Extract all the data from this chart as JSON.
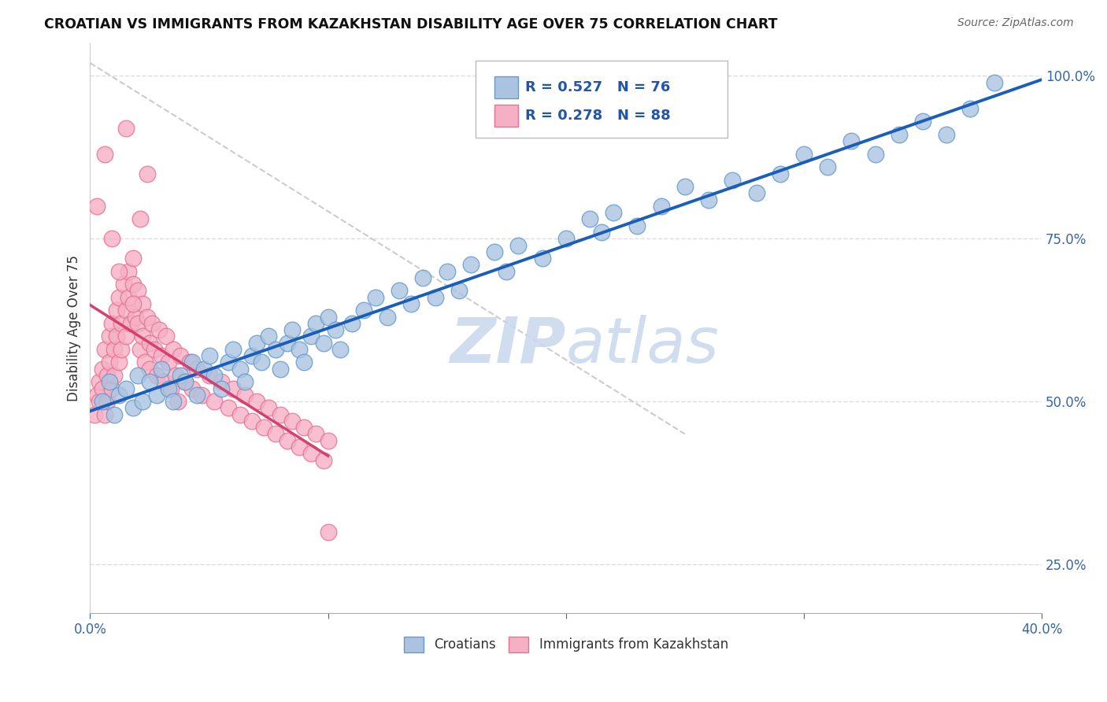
{
  "title": "CROATIAN VS IMMIGRANTS FROM KAZAKHSTAN DISABILITY AGE OVER 75 CORRELATION CHART",
  "source": "Source: ZipAtlas.com",
  "ylabel": "Disability Age Over 75",
  "xlim": [
    0.0,
    0.4
  ],
  "ylim": [
    0.175,
    1.05
  ],
  "xticks": [
    0.0,
    0.1,
    0.2,
    0.3,
    0.4
  ],
  "xtick_labels": [
    "0.0%",
    "",
    "",
    "",
    "40.0%"
  ],
  "yticks": [
    0.25,
    0.5,
    0.75,
    1.0
  ],
  "ytick_labels": [
    "25.0%",
    "50.0%",
    "75.0%",
    "100.0%"
  ],
  "blue_color": "#aac4e0",
  "blue_edge": "#6699cc",
  "pink_color": "#f5b0c5",
  "pink_edge": "#e87090",
  "line_blue": "#1a5eb8",
  "line_pink": "#d44070",
  "grid_color": "#dddddd",
  "watermark_color": "#c8d8ec",
  "legend_label1": "Croatians",
  "legend_label2": "Immigrants from Kazakhstan",
  "blue_scatter_x": [
    0.005,
    0.008,
    0.01,
    0.012,
    0.015,
    0.018,
    0.02,
    0.022,
    0.025,
    0.028,
    0.03,
    0.033,
    0.035,
    0.038,
    0.04,
    0.043,
    0.045,
    0.048,
    0.05,
    0.052,
    0.055,
    0.058,
    0.06,
    0.063,
    0.065,
    0.068,
    0.07,
    0.072,
    0.075,
    0.078,
    0.08,
    0.083,
    0.085,
    0.088,
    0.09,
    0.093,
    0.095,
    0.098,
    0.1,
    0.103,
    0.105,
    0.11,
    0.115,
    0.12,
    0.125,
    0.13,
    0.135,
    0.14,
    0.145,
    0.15,
    0.155,
    0.16,
    0.17,
    0.175,
    0.18,
    0.19,
    0.2,
    0.21,
    0.215,
    0.22,
    0.23,
    0.24,
    0.25,
    0.26,
    0.27,
    0.28,
    0.29,
    0.3,
    0.31,
    0.32,
    0.33,
    0.34,
    0.35,
    0.36,
    0.37,
    0.38
  ],
  "blue_scatter_y": [
    0.5,
    0.53,
    0.48,
    0.51,
    0.52,
    0.49,
    0.54,
    0.5,
    0.53,
    0.51,
    0.55,
    0.52,
    0.5,
    0.54,
    0.53,
    0.56,
    0.51,
    0.55,
    0.57,
    0.54,
    0.52,
    0.56,
    0.58,
    0.55,
    0.53,
    0.57,
    0.59,
    0.56,
    0.6,
    0.58,
    0.55,
    0.59,
    0.61,
    0.58,
    0.56,
    0.6,
    0.62,
    0.59,
    0.63,
    0.61,
    0.58,
    0.62,
    0.64,
    0.66,
    0.63,
    0.67,
    0.65,
    0.69,
    0.66,
    0.7,
    0.67,
    0.71,
    0.73,
    0.7,
    0.74,
    0.72,
    0.75,
    0.78,
    0.76,
    0.79,
    0.77,
    0.8,
    0.83,
    0.81,
    0.84,
    0.82,
    0.85,
    0.88,
    0.86,
    0.9,
    0.88,
    0.91,
    0.93,
    0.91,
    0.95,
    0.99
  ],
  "pink_scatter_x": [
    0.002,
    0.003,
    0.004,
    0.004,
    0.005,
    0.005,
    0.006,
    0.006,
    0.007,
    0.007,
    0.008,
    0.008,
    0.009,
    0.009,
    0.01,
    0.01,
    0.011,
    0.011,
    0.012,
    0.012,
    0.013,
    0.013,
    0.014,
    0.015,
    0.015,
    0.016,
    0.016,
    0.017,
    0.018,
    0.018,
    0.019,
    0.02,
    0.02,
    0.021,
    0.022,
    0.022,
    0.023,
    0.024,
    0.025,
    0.025,
    0.026,
    0.027,
    0.028,
    0.029,
    0.03,
    0.031,
    0.032,
    0.033,
    0.034,
    0.035,
    0.036,
    0.037,
    0.038,
    0.04,
    0.042,
    0.043,
    0.045,
    0.047,
    0.05,
    0.052,
    0.055,
    0.058,
    0.06,
    0.063,
    0.065,
    0.068,
    0.07,
    0.073,
    0.075,
    0.078,
    0.08,
    0.083,
    0.085,
    0.088,
    0.09,
    0.093,
    0.095,
    0.098,
    0.1,
    0.1,
    0.003,
    0.006,
    0.009,
    0.012,
    0.015,
    0.018,
    0.021,
    0.024
  ],
  "pink_scatter_y": [
    0.48,
    0.51,
    0.5,
    0.53,
    0.52,
    0.55,
    0.48,
    0.58,
    0.54,
    0.5,
    0.6,
    0.56,
    0.52,
    0.62,
    0.58,
    0.54,
    0.64,
    0.6,
    0.56,
    0.66,
    0.62,
    0.58,
    0.68,
    0.64,
    0.6,
    0.7,
    0.66,
    0.62,
    0.72,
    0.68,
    0.63,
    0.67,
    0.62,
    0.58,
    0.65,
    0.6,
    0.56,
    0.63,
    0.59,
    0.55,
    0.62,
    0.58,
    0.54,
    0.61,
    0.57,
    0.53,
    0.6,
    0.56,
    0.52,
    0.58,
    0.54,
    0.5,
    0.57,
    0.53,
    0.56,
    0.52,
    0.55,
    0.51,
    0.54,
    0.5,
    0.53,
    0.49,
    0.52,
    0.48,
    0.51,
    0.47,
    0.5,
    0.46,
    0.49,
    0.45,
    0.48,
    0.44,
    0.47,
    0.43,
    0.46,
    0.42,
    0.45,
    0.41,
    0.44,
    0.3,
    0.8,
    0.88,
    0.75,
    0.7,
    0.92,
    0.65,
    0.78,
    0.85
  ]
}
